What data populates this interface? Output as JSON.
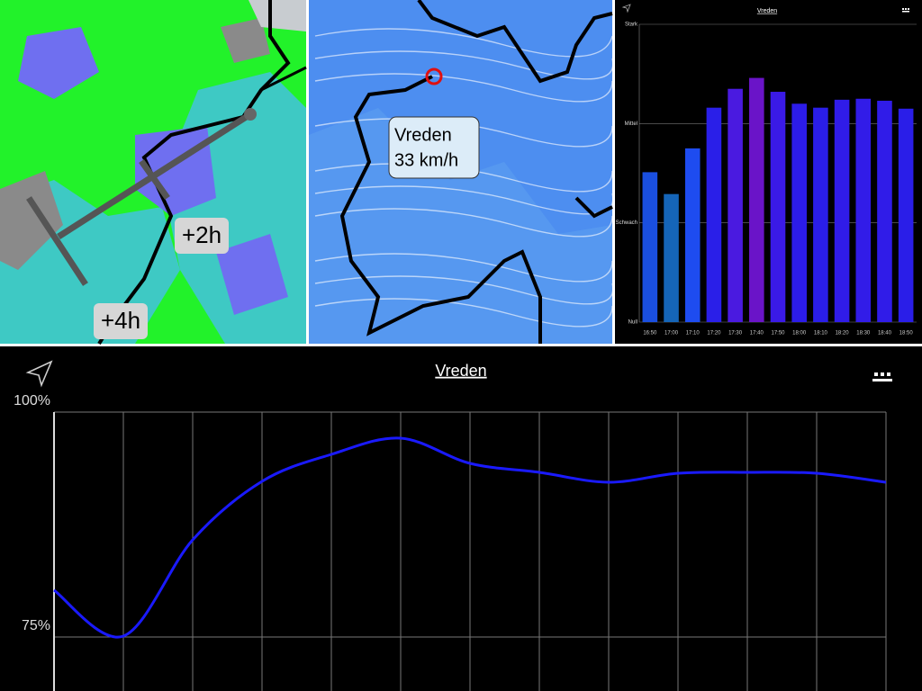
{
  "panels": {
    "map_left": {
      "labels": [
        "+2h",
        "+4h"
      ]
    },
    "map_center": {
      "label_lines": [
        "Vreden",
        "33 km/h"
      ]
    }
  },
  "chart_data": [
    {
      "type": "bar",
      "title": "Vreden",
      "categories": [
        "16:50",
        "17:00",
        "17:10",
        "17:20",
        "17:30",
        "17:40",
        "17:50",
        "18:00",
        "18:10",
        "18:20",
        "18:30",
        "18:40",
        "18:50"
      ],
      "values": [
        1.51,
        1.29,
        1.75,
        2.16,
        2.35,
        2.46,
        2.32,
        2.2,
        2.16,
        2.24,
        2.25,
        2.23,
        2.15
      ],
      "colors": [
        "#1a4fe0",
        "#1565b8",
        "#1e4cf0",
        "#2a1fe8",
        "#4a1ae0",
        "#6a14c8",
        "#3a1ae6",
        "#2c1ce8",
        "#2a1ee8",
        "#301ce8",
        "#321ce8",
        "#301ce8",
        "#2a1ee8"
      ],
      "ylim": [
        0,
        3
      ],
      "yticks": [
        {
          "value": 0,
          "label": "Null"
        },
        {
          "value": 1,
          "label": "Schwach"
        },
        {
          "value": 2,
          "label": "Mittel"
        },
        {
          "value": 3,
          "label": "Stark"
        }
      ],
      "grid": true
    },
    {
      "type": "line",
      "title": "Vreden",
      "categories": [
        null,
        null,
        null,
        null,
        null,
        null,
        null,
        null,
        null,
        null,
        null,
        null,
        null
      ],
      "values": [
        80.2,
        75.1,
        85.8,
        92.3,
        95.3,
        97.1,
        94.3,
        93.3,
        92.2,
        93.2,
        93.3,
        93.2,
        92.2
      ],
      "color": "#1a1aff",
      "ylim": [
        69,
        100
      ],
      "yticks": [
        {
          "value": 100,
          "label": "100%"
        },
        {
          "value": 75,
          "label": "75%"
        }
      ],
      "grid": true
    }
  ]
}
